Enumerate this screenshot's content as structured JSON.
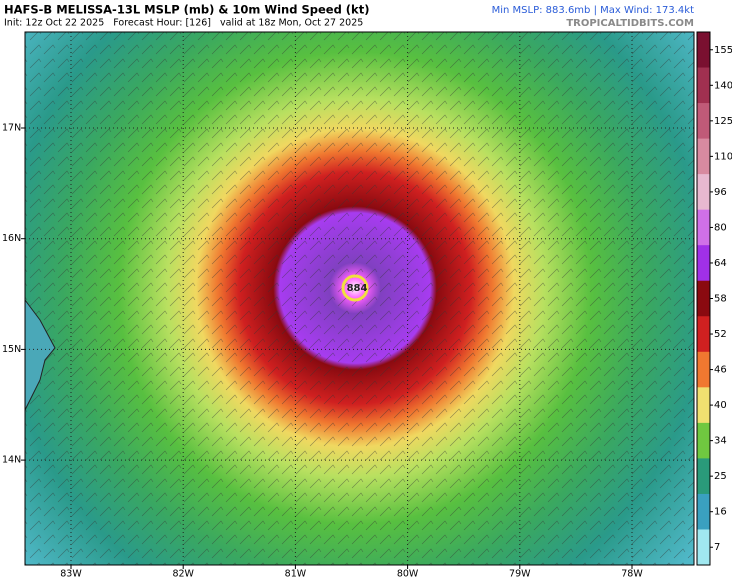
{
  "header": {
    "title": "HAFS-B MELISSA-13L MSLP (mb) & 10m Wind Speed (kt)",
    "init_line": "Init: 12z Oct 22 2025   Forecast Hour: [126]   valid at 18z Mon, Oct 27 2025",
    "stats": "Min MSLP: 883.6mb | Max Wind: 173.4kt",
    "site": "TROPICALTIDBITS.COM"
  },
  "map": {
    "lon_labels": [
      "83W",
      "82W",
      "81W",
      "80W",
      "79W",
      "78W"
    ],
    "lat_labels": [
      "17N",
      "16N",
      "15N",
      "14N"
    ],
    "center_label": "884"
  },
  "colorbar": {
    "ticks": [
      155,
      140,
      125,
      110,
      96,
      80,
      64,
      58,
      52,
      46,
      40,
      34,
      25,
      16,
      7
    ],
    "colors": [
      "#7a1030",
      "#a03050",
      "#c05a78",
      "#d88aa0",
      "#e8b8d0",
      "#d070e8",
      "#a030e8",
      "#8a0a10",
      "#d02020",
      "#f07830",
      "#f0e070",
      "#70c840",
      "#2a9a7a",
      "#3aa0c0",
      "#a0e8f0"
    ]
  }
}
